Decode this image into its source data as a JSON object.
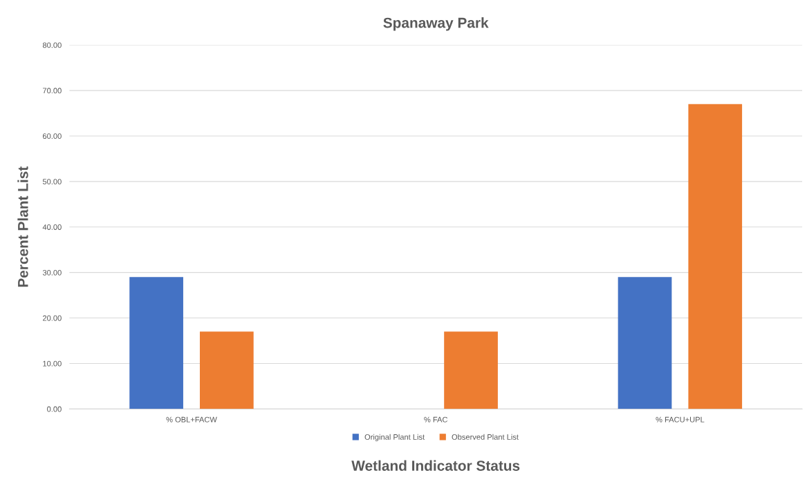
{
  "chart_data": {
    "type": "bar",
    "title": "Spanaway Park",
    "xlabel": "Wetland Indicator Status",
    "ylabel": "Percent Plant List",
    "categories": [
      "% OBL+FACW",
      "% FAC",
      "% FACU+UPL"
    ],
    "series": [
      {
        "name": "Original Plant List",
        "color": "#4472c4",
        "values": [
          29,
          0,
          29
        ]
      },
      {
        "name": "Observed Plant List",
        "color": "#ed7d31",
        "values": [
          17,
          17,
          67
        ]
      }
    ],
    "ylim": [
      0,
      80
    ],
    "yticks": [
      {
        "value": 0,
        "label": "0.00"
      },
      {
        "value": 10,
        "label": "10.00"
      },
      {
        "value": 20,
        "label": "20.00"
      },
      {
        "value": 30,
        "label": "30.00"
      },
      {
        "value": 40,
        "label": "40.00"
      },
      {
        "value": 50,
        "label": "50.00"
      },
      {
        "value": 60,
        "label": "60.00"
      },
      {
        "value": 70,
        "label": "70.00"
      },
      {
        "value": 80,
        "label": "80.00"
      }
    ],
    "grid": "y",
    "legend": "bottom"
  }
}
